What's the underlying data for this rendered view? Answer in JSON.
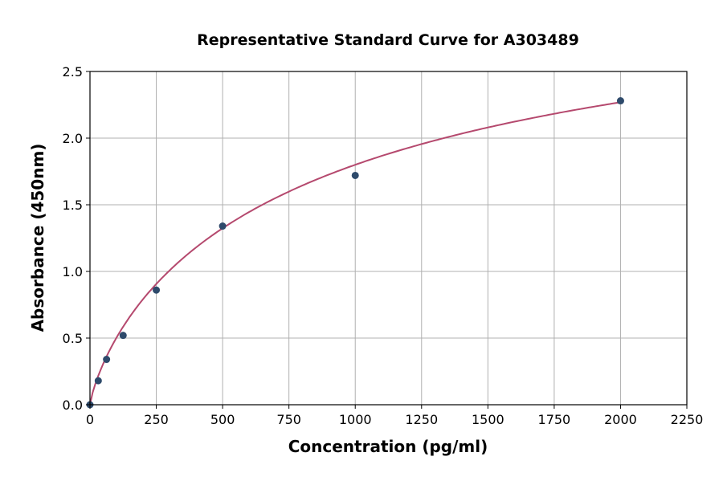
{
  "chart_data": {
    "type": "scatter",
    "title": "Representative Standard Curve for A303489",
    "xlabel": "Concentration (pg/ml)",
    "ylabel": "Absorbance (450nm)",
    "xlim": [
      0,
      2250
    ],
    "ylim": [
      0,
      2.5
    ],
    "xticks": [
      "0",
      "250",
      "500",
      "750",
      "1000",
      "1250",
      "1500",
      "1750",
      "2000",
      "2250"
    ],
    "yticks": [
      "0.0",
      "0.5",
      "1.0",
      "1.5",
      "2.0",
      "2.5"
    ],
    "grid": true,
    "points": {
      "x": [
        0,
        31.25,
        62.5,
        125,
        250,
        500,
        1000,
        2000
      ],
      "y": [
        0.0,
        0.18,
        0.34,
        0.52,
        0.86,
        1.34,
        1.72,
        2.28
      ]
    },
    "fit_curve": "fitted standard curve",
    "colors": {
      "points": "#2e4a6b",
      "curve": "#b5496e",
      "grid": "#b0b0b0"
    }
  }
}
